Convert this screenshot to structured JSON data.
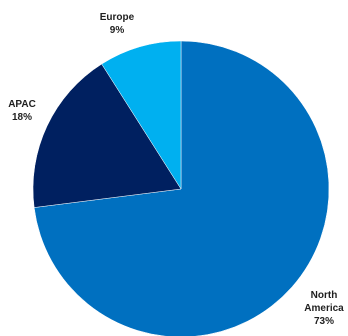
{
  "chart_data": {
    "type": "pie",
    "slices": [
      {
        "name": "North America",
        "label_lines": [
          "North",
          "America"
        ],
        "value": 73,
        "value_label": "73%",
        "color": "#0070c0"
      },
      {
        "name": "APAC",
        "label_lines": [
          "APAC"
        ],
        "value": 18,
        "value_label": "18%",
        "color": "#002060"
      },
      {
        "name": "Europe",
        "label_lines": [
          "Europe"
        ],
        "value": 9,
        "value_label": "9%",
        "color": "#00b0f0"
      }
    ],
    "title": "",
    "legend": "none",
    "start_angle": "top",
    "direction": "clockwise"
  }
}
